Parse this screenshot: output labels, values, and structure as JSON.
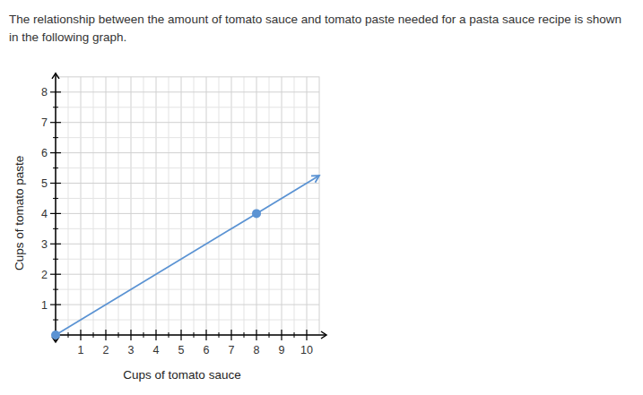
{
  "chart_data": {
    "type": "line",
    "title": "The relationship between the amount of tomato sauce and tomato paste needed for a pasta sauce recipe is shown in the following graph.",
    "x_label": "Cups of tomato sauce",
    "y_label": "Cups of tomato paste",
    "xlim": [
      0,
      10.5
    ],
    "ylim": [
      0,
      8.5
    ],
    "xticks": [
      1,
      2,
      3,
      4,
      5,
      6,
      7,
      8,
      9,
      10
    ],
    "yticks": [
      1,
      2,
      3,
      4,
      5,
      6,
      7,
      8
    ],
    "grid": true,
    "series": [
      {
        "type": "line",
        "x": [
          0,
          8,
          10.5
        ],
        "values": [
          0,
          4,
          5.25
        ],
        "color": "#5b93d3",
        "line_style": "solid",
        "marker": "arrow"
      },
      {
        "type": "scatter",
        "x": [
          0,
          8
        ],
        "values": [
          0,
          4
        ],
        "color": "#5b93d3",
        "marker": "circle"
      }
    ]
  }
}
